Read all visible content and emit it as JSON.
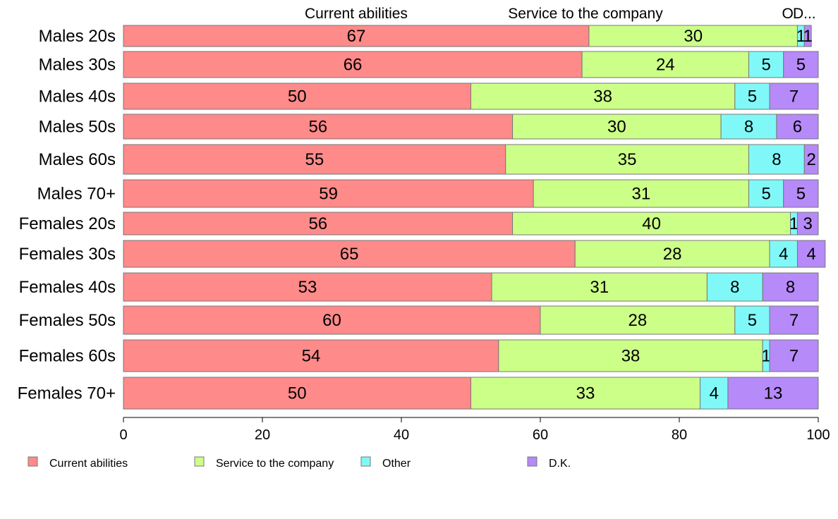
{
  "chart_data": {
    "type": "bar",
    "orientation": "horizontal",
    "stacked": true,
    "categories": [
      "Males 20s",
      "Males 30s",
      "Males 40s",
      "Males 50s",
      "Males 60s",
      "Males 70+",
      "Females 20s",
      "Females 30s",
      "Females 40s",
      "Females 50s",
      "Females 60s",
      "Females 70+"
    ],
    "series": [
      {
        "name": "Current abilities",
        "color": "#FF8A8A",
        "values": [
          67,
          66,
          50,
          56,
          55,
          59,
          56,
          65,
          53,
          60,
          54,
          50
        ]
      },
      {
        "name": "Service to the company",
        "color": "#CCFF88",
        "values": [
          30,
          24,
          38,
          30,
          35,
          31,
          40,
          28,
          31,
          28,
          38,
          33
        ]
      },
      {
        "name": "Other",
        "color": "#80F8F8",
        "values": [
          1,
          5,
          5,
          8,
          8,
          5,
          1,
          4,
          8,
          5,
          1,
          4
        ]
      },
      {
        "name": "D.K.",
        "color": "#B68AF8",
        "values": [
          1,
          5,
          7,
          6,
          2,
          5,
          3,
          4,
          8,
          7,
          7,
          13
        ]
      }
    ],
    "top_labels": [
      "Current abilities",
      "Service to the company",
      "O",
      "D..."
    ],
    "xlim": [
      0,
      100
    ],
    "xticks": [
      0,
      20,
      40,
      60,
      80,
      100
    ],
    "grid": false,
    "legend_position": "bottom"
  }
}
